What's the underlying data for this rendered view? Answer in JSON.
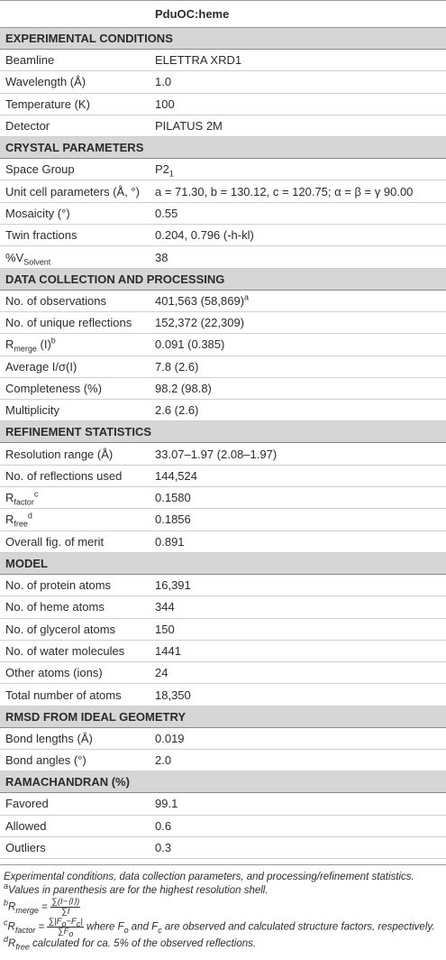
{
  "table": {
    "column_header": "PduOC:heme",
    "sections": [
      {
        "title": "EXPERIMENTAL CONDITIONS",
        "rows": [
          {
            "label": [
              "Beamline"
            ],
            "value": [
              "ELETTRA XRD1"
            ]
          },
          {
            "label": [
              "Wavelength (Å)"
            ],
            "value": [
              "1.0"
            ]
          },
          {
            "label": [
              "Temperature (K)"
            ],
            "value": [
              "100"
            ]
          },
          {
            "label": [
              "Detector"
            ],
            "value": [
              "PILATUS 2M"
            ]
          }
        ]
      },
      {
        "title": "CRYSTAL PARAMETERS",
        "rows": [
          {
            "label": [
              "Space Group"
            ],
            "value": [
              "P2",
              {
                "sub": "1"
              }
            ]
          },
          {
            "label": [
              "Unit cell parameters (Å, °)"
            ],
            "value": [
              "a = 71.30, b = 130.12, c = 120.75; α = β = γ 90.00"
            ]
          },
          {
            "label": [
              "Mosaicity (°)"
            ],
            "value": [
              "0.55"
            ]
          },
          {
            "label": [
              "Twin fractions"
            ],
            "value": [
              "0.204, 0.796 (-h-kl)"
            ]
          },
          {
            "label": [
              "%V",
              {
                "sub": "Solvent"
              }
            ],
            "value": [
              "38"
            ]
          }
        ]
      },
      {
        "title": "DATA COLLECTION AND PROCESSING",
        "rows": [
          {
            "label": [
              "No. of observations"
            ],
            "value": [
              "401,563 (58,869)",
              {
                "sup": "a"
              }
            ]
          },
          {
            "label": [
              "No. of unique reflections"
            ],
            "value": [
              "152,372 (22,309)"
            ]
          },
          {
            "label": [
              "R",
              {
                "sub": "merge"
              },
              " (I)",
              {
                "sup": "b"
              }
            ],
            "value": [
              "0.091 (0.385)"
            ]
          },
          {
            "label": [
              "Average I/σ(I)"
            ],
            "value": [
              "7.8 (2.6)"
            ]
          },
          {
            "label": [
              "Completeness (%)"
            ],
            "value": [
              "98.2 (98.8)"
            ]
          },
          {
            "label": [
              "Multiplicity"
            ],
            "value": [
              "2.6 (2.6)"
            ]
          }
        ]
      },
      {
        "title": "REFINEMENT STATISTICS",
        "rows": [
          {
            "label": [
              "Resolution range (Å)"
            ],
            "value": [
              "33.07–1.97 (2.08–1.97)"
            ]
          },
          {
            "label": [
              "No. of reflections used"
            ],
            "value": [
              "144,524"
            ]
          },
          {
            "label": [
              "R",
              {
                "sub": "factor"
              },
              {
                "sup": "c"
              }
            ],
            "value": [
              "0.1580"
            ]
          },
          {
            "label": [
              "R",
              {
                "sub": "free"
              },
              {
                "sup": "d"
              }
            ],
            "value": [
              "0.1856"
            ]
          },
          {
            "label": [
              "Overall fig. of merit"
            ],
            "value": [
              "0.891"
            ]
          }
        ]
      },
      {
        "title": "MODEL",
        "rows": [
          {
            "label": [
              "No. of protein atoms"
            ],
            "value": [
              "16,391"
            ]
          },
          {
            "label": [
              "No. of heme atoms"
            ],
            "value": [
              "344"
            ]
          },
          {
            "label": [
              "No. of glycerol atoms"
            ],
            "value": [
              "150"
            ]
          },
          {
            "label": [
              "No. of water molecules"
            ],
            "value": [
              "1441"
            ]
          },
          {
            "label": [
              "Other atoms (ions)"
            ],
            "value": [
              "24"
            ]
          },
          {
            "label": [
              "Total number of atoms"
            ],
            "value": [
              "18,350"
            ]
          }
        ]
      },
      {
        "title": "RMSD FROM IDEAL GEOMETRY",
        "rows": [
          {
            "label": [
              "Bond lengths (Å)"
            ],
            "value": [
              "0.019"
            ]
          },
          {
            "label": [
              "Bond angles (°)"
            ],
            "value": [
              "2.0"
            ]
          }
        ]
      },
      {
        "title": "RAMACHANDRAN (%)",
        "rows": [
          {
            "label": [
              "Favored"
            ],
            "value": [
              "99.1"
            ]
          },
          {
            "label": [
              "Allowed"
            ],
            "value": [
              "0.6"
            ]
          },
          {
            "label": [
              "Outliers"
            ],
            "value": [
              "0.3"
            ]
          }
        ]
      }
    ]
  },
  "footnotes": [
    [
      "Experimental conditions, data collection parameters, and processing/refinement statistics."
    ],
    [
      {
        "sup": "a"
      },
      "Values in parenthesis are for the highest resolution shell."
    ],
    [
      {
        "sup": "b"
      },
      "R",
      {
        "sub": "merge"
      },
      " = ",
      {
        "num": [
          "∑(I−⟨I⟩)"
        ],
        "den": [
          "∑I"
        ]
      }
    ],
    [
      {
        "sup": "c"
      },
      "R",
      {
        "sub": "factor"
      },
      " = ",
      {
        "num": [
          "∑|F",
          {
            "sub": "o"
          },
          "−F",
          {
            "sub": "c"
          },
          "|"
        ],
        "den": [
          "∑F",
          {
            "sub": "o"
          }
        ]
      },
      " where F",
      {
        "sub": "o"
      },
      " and F",
      {
        "sub": "c"
      },
      " are observed and calculated structure factors, respectively."
    ],
    [
      {
        "sup": "d"
      },
      "R",
      {
        "sub": "free"
      },
      " calculated for ca. 5% of the observed reflections."
    ]
  ]
}
